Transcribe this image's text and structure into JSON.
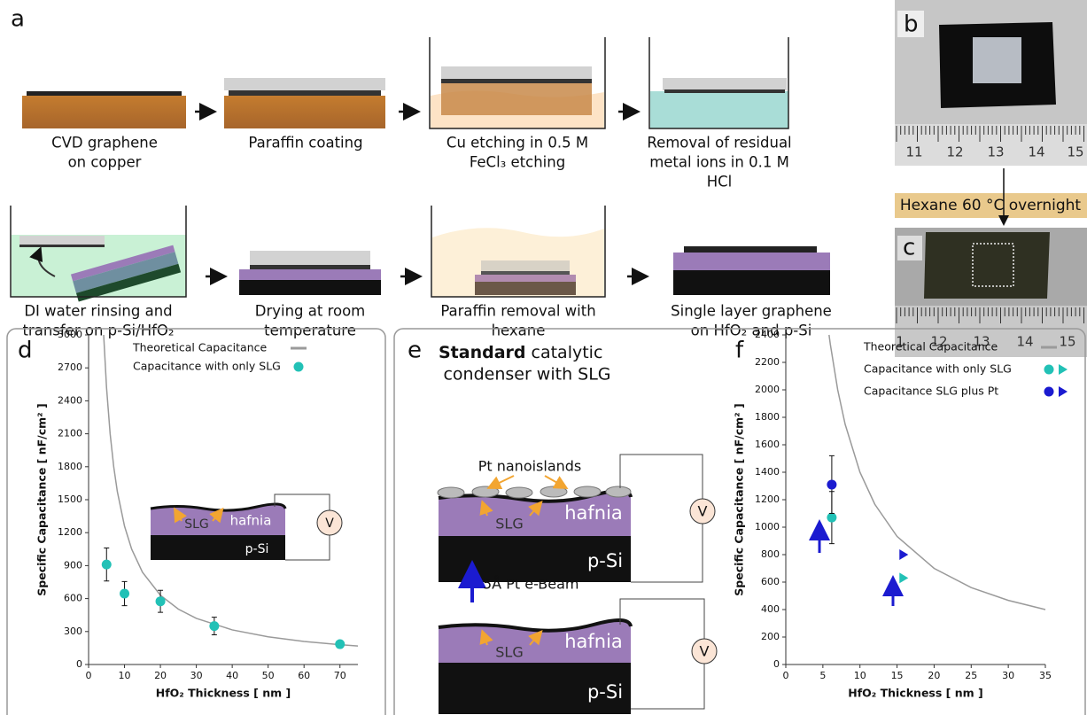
{
  "panel_a": {
    "label": "a",
    "captions": [
      [
        "CVD graphene",
        "on copper"
      ],
      [
        "Paraffin coating"
      ],
      [
        "Cu etching in 0.5 M",
        "FeCl₃ etching"
      ],
      [
        "Removal of residual",
        "metal ions in 0.1 M",
        "HCl"
      ],
      [
        "DI water rinsing and",
        "transfer on p-Si/HfO₂"
      ],
      [
        "Drying at room",
        "temperature"
      ],
      [
        "Paraffin removal with",
        "hexane"
      ],
      [
        "Single layer graphene",
        "on HfO₂ and p-Si"
      ]
    ]
  },
  "panel_bc": {
    "labels": [
      "b",
      "c"
    ],
    "step": "Hexane 60 °C overnight",
    "ruler_b": [
      "11",
      "12",
      "13",
      "14",
      "15"
    ],
    "ruler_c": [
      "1",
      "12",
      "13",
      "14",
      "15"
    ]
  },
  "panel_e": {
    "label": "e",
    "title_bold": "Standard",
    "title_rest": "catalytic",
    "title_line2": "condenser with SLG",
    "islands": "Pt nanoislands",
    "step": "5Å Pt e-Beam",
    "graphene": "SLG",
    "layer": "hafnia",
    "substrate": "p-Si",
    "meter": "V"
  },
  "chart_data": [
    {
      "panel_label": "d",
      "type": "scatter",
      "xlabel": "HfO₂ Thickness [ nm ]",
      "ylabel": "Specific Capacitance [ nF/cm² ]",
      "xlim": [
        0,
        75
      ],
      "xticks": [
        0,
        10,
        20,
        30,
        40,
        50,
        60,
        70
      ],
      "ylim": [
        0,
        3000
      ],
      "yticks": [
        0,
        300,
        600,
        900,
        1200,
        1500,
        1800,
        2100,
        2400,
        2700,
        3000
      ],
      "legend": "upper right",
      "series": [
        {
          "name": "Theoretical Capacitance",
          "type": "line",
          "color": "#9a9a9a",
          "x": [
            4.2,
            5,
            6,
            7,
            8,
            10,
            12,
            15,
            20,
            25,
            30,
            40,
            50,
            60,
            70,
            75
          ],
          "values": [
            3000,
            2520,
            2100,
            1800,
            1575,
            1260,
            1050,
            840,
            630,
            504,
            420,
            315,
            252,
            210,
            180,
            168
          ]
        },
        {
          "name": "Capacitance with only SLG",
          "type": "scatter",
          "color": "#22c1b6",
          "x": [
            5,
            10,
            20,
            35,
            70
          ],
          "values": [
            910,
            645,
            575,
            350,
            185
          ],
          "errors": [
            150,
            110,
            100,
            80,
            20
          ]
        }
      ],
      "inset": {
        "graphene": "SLG",
        "layer": "hafnia",
        "substrate": "p-Si",
        "meter": "V"
      }
    },
    {
      "panel_label": "f",
      "type": "scatter",
      "xlabel": "HfO₂ Thickness [ nm ]",
      "ylabel": "Specific Capacitance [ nF/cm² ]",
      "xlim": [
        0,
        35
      ],
      "xticks": [
        0,
        5,
        10,
        15,
        20,
        25,
        30,
        35
      ],
      "ylim": [
        0,
        2400
      ],
      "yticks": [
        0,
        200,
        400,
        600,
        800,
        1000,
        1200,
        1400,
        1600,
        1800,
        2000,
        2200,
        2400
      ],
      "legend": "upper right",
      "series": [
        {
          "name": "Theoretical Capacitance",
          "type": "line",
          "color": "#9a9a9a",
          "x": [
            5.833,
            6,
            7,
            8,
            10,
            12,
            15,
            20,
            25,
            30,
            35
          ],
          "values": [
            2400,
            2333,
            2000,
            1750,
            1400,
            1167,
            933,
            700,
            560,
            467,
            400
          ]
        },
        {
          "name": "Capacitance with only SLG",
          "type": "scatter",
          "color": "#22c1b6",
          "x": [
            6.2,
            15.8
          ],
          "values": [
            1070,
            630
          ],
          "errors": [
            190,
            null
          ],
          "markers": [
            "circle",
            "triangle"
          ]
        },
        {
          "name": "Capacitance SLG plus Pt",
          "type": "scatter",
          "color": "#1b1bd0",
          "x": [
            6.2,
            15.8
          ],
          "values": [
            1310,
            800
          ],
          "errors": [
            210,
            null
          ],
          "markers": [
            "circle",
            "triangle"
          ]
        }
      ]
    }
  ]
}
